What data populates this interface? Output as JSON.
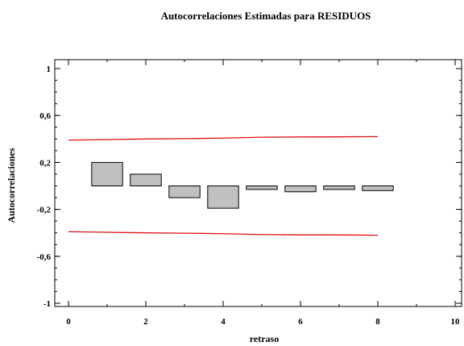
{
  "chart_data": {
    "type": "bar",
    "title": "Autocorrelaciones Estimadas para RESIDUOS",
    "xlabel": "retraso",
    "ylabel": "Autocorrelaciones",
    "xlim": [
      0,
      10
    ],
    "ylim": [
      -1,
      1
    ],
    "x_ticks": [
      0,
      2,
      4,
      6,
      8,
      10
    ],
    "x_tick_labels": [
      "0",
      "2",
      "4",
      "6",
      "8",
      "10"
    ],
    "y_ticks": [
      1,
      0.6,
      0.2,
      -0.2,
      -0.6,
      -1
    ],
    "y_tick_labels": [
      "1",
      "0,6",
      "0,2",
      "-0,2",
      "-0,6",
      "-1"
    ],
    "grid": false,
    "bar_width_lags": 0.8,
    "x": [
      1,
      2,
      3,
      4,
      5,
      6,
      7,
      8
    ],
    "values": [
      0.2,
      0.1,
      -0.1,
      -0.19,
      -0.03,
      -0.05,
      -0.03,
      -0.04
    ],
    "bar_color": "#c0c0c0",
    "confidence_limits": {
      "color": "#e01010",
      "lags": [
        0,
        1,
        2,
        3,
        4,
        5,
        6,
        7,
        8
      ],
      "upper": [
        0.39,
        0.395,
        0.4,
        0.403,
        0.407,
        0.415,
        0.417,
        0.418,
        0.42
      ],
      "lower": [
        -0.39,
        -0.395,
        -0.4,
        -0.403,
        -0.407,
        -0.415,
        -0.417,
        -0.418,
        -0.42
      ]
    }
  }
}
